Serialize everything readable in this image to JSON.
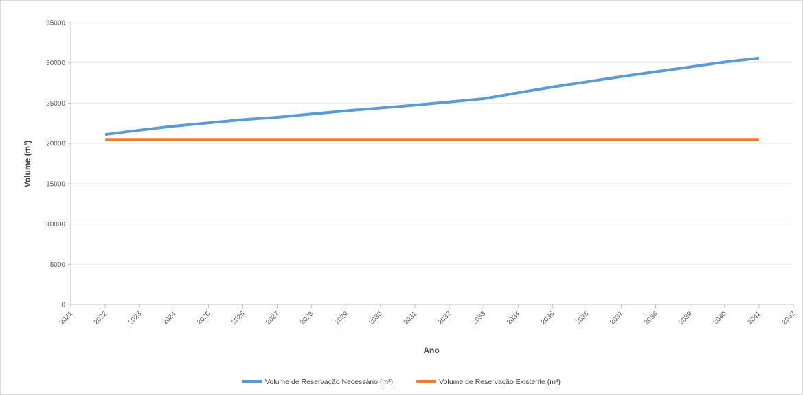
{
  "chart_data": {
    "type": "line",
    "title": "",
    "xlabel": "Ano",
    "ylabel": "Volume (m³)",
    "xlim": [
      2021,
      2042
    ],
    "ylim": [
      0,
      35000
    ],
    "x_ticks": [
      2021,
      2022,
      2023,
      2024,
      2025,
      2026,
      2027,
      2028,
      2029,
      2030,
      2031,
      2032,
      2033,
      2034,
      2035,
      2036,
      2037,
      2038,
      2039,
      2040,
      2041,
      2042
    ],
    "x_tick_labels": [
      "2021",
      "2022",
      "2023",
      "2024",
      "2025",
      "2026",
      "2027",
      "2028",
      "2029",
      "2030",
      "2031",
      "2032",
      "2033",
      "2034",
      "2035",
      "2036",
      "2037",
      "2038",
      "2039",
      "2040",
      "2041",
      "2042"
    ],
    "y_ticks": [
      0,
      5000,
      10000,
      15000,
      20000,
      25000,
      30000,
      35000
    ],
    "y_tick_labels": [
      "0",
      "5000",
      "10000",
      "15000",
      "20000",
      "25000",
      "30000",
      "35000"
    ],
    "grid": true,
    "legend_position": "bottom",
    "x": [
      2022,
      2023,
      2024,
      2025,
      2026,
      2027,
      2028,
      2029,
      2030,
      2031,
      2032,
      2033,
      2034,
      2035,
      2036,
      2037,
      2038,
      2039,
      2040,
      2041
    ],
    "series": [
      {
        "name": "Volume de Reservação Necessário (m³)",
        "color": "#5B9BD5",
        "values": [
          21100,
          21650,
          22150,
          22550,
          22950,
          23250,
          23650,
          24050,
          24400,
          24750,
          25150,
          25550,
          26300,
          27000,
          27650,
          28300,
          28900,
          29500,
          30100,
          30600
        ]
      },
      {
        "name": "Volume de Reservação Existente (m³)",
        "color": "#ED7D31",
        "values": [
          20500,
          20500,
          20500,
          20500,
          20500,
          20500,
          20500,
          20500,
          20500,
          20500,
          20500,
          20500,
          20500,
          20500,
          20500,
          20500,
          20500,
          20500,
          20500,
          20500
        ]
      }
    ]
  }
}
